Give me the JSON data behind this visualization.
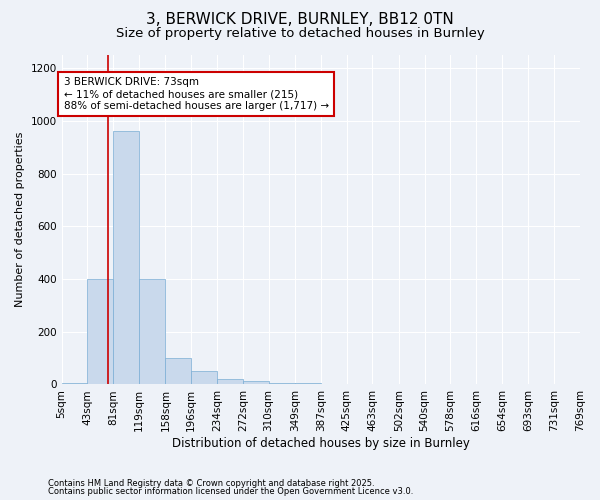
{
  "title1": "3, BERWICK DRIVE, BURNLEY, BB12 0TN",
  "title2": "Size of property relative to detached houses in Burnley",
  "xlabel": "Distribution of detached houses by size in Burnley",
  "ylabel": "Number of detached properties",
  "footnote1": "Contains HM Land Registry data © Crown copyright and database right 2025.",
  "footnote2": "Contains public sector information licensed under the Open Government Licence v3.0.",
  "bin_edges": [
    5,
    43,
    81,
    119,
    158,
    196,
    234,
    272,
    310,
    349,
    387,
    425,
    463,
    502,
    540,
    578,
    616,
    654,
    693,
    731,
    769
  ],
  "bin_labels": [
    "5sqm",
    "43sqm",
    "81sqm",
    "119sqm",
    "158sqm",
    "196sqm",
    "234sqm",
    "272sqm",
    "310sqm",
    "349sqm",
    "387sqm",
    "425sqm",
    "463sqm",
    "502sqm",
    "540sqm",
    "578sqm",
    "616sqm",
    "654sqm",
    "693sqm",
    "731sqm",
    "769sqm"
  ],
  "bar_heights": [
    5,
    400,
    960,
    400,
    100,
    50,
    20,
    15,
    5,
    5,
    2,
    0,
    0,
    0,
    0,
    0,
    0,
    0,
    0,
    0
  ],
  "bar_color": "#c9d9ec",
  "bar_edge_color": "#7aadd4",
  "property_size": 73,
  "annotation_text": "3 BERWICK DRIVE: 73sqm\n← 11% of detached houses are smaller (215)\n88% of semi-detached houses are larger (1,717) →",
  "annotation_box_color": "#ffffff",
  "annotation_box_edge": "#cc0000",
  "vline_color": "#cc0000",
  "ylim": [
    0,
    1250
  ],
  "yticks": [
    0,
    200,
    400,
    600,
    800,
    1000,
    1200
  ],
  "background_color": "#eef2f8",
  "plot_background": "#eef2f8",
  "grid_color": "#ffffff",
  "title_fontsize": 11,
  "subtitle_fontsize": 9.5,
  "tick_fontsize": 7.5,
  "ylabel_fontsize": 8,
  "xlabel_fontsize": 8.5,
  "annotation_fontsize": 7.5,
  "footnote_fontsize": 6
}
